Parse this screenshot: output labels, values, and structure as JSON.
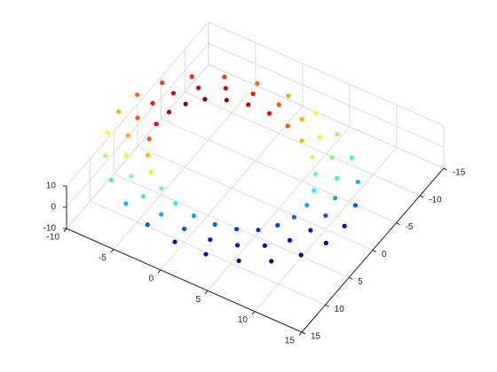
{
  "chart_data": {
    "type": "scatter3d",
    "colormap": "jet",
    "clim": [
      -6,
      6
    ],
    "grid": true,
    "xlim": [
      -10,
      15
    ],
    "xticks": [
      -10,
      -5,
      0,
      5,
      10,
      15
    ],
    "ylim": [
      -15,
      15
    ],
    "yticks": [
      -15,
      -10,
      -5,
      0,
      5,
      10,
      15
    ],
    "zlim": [
      -10,
      10
    ],
    "zticks": [
      -10,
      0,
      10
    ],
    "x": [
      8,
      7.7,
      6.9,
      5.7,
      4,
      2.1,
      0,
      -2.1,
      -4,
      -5.7,
      -6.9,
      -7.7,
      -8,
      -7.7,
      -6.9,
      -5.7,
      -4,
      -2.1,
      0,
      2.1,
      4,
      5.7,
      6.9,
      7.7,
      10,
      9.7,
      8.7,
      7.1,
      5,
      2.6,
      0,
      -2.6,
      -5,
      -7.1,
      -8.7,
      -9.7,
      -10,
      -9.7,
      -8.7,
      -7.1,
      -5,
      -2.6,
      0,
      2.6,
      5,
      7.1,
      8.7,
      9.7,
      12,
      11.6,
      10.4,
      8.5,
      6,
      3.1,
      0,
      -3.1,
      -6,
      -8.5,
      -10.4,
      -11.6,
      -12,
      -11.6,
      -10.4,
      -8.5,
      -6,
      -3.1,
      0,
      3.1,
      6,
      8.5,
      10.4,
      11.6
    ],
    "y": [
      0,
      2.1,
      4,
      5.7,
      6.9,
      7.7,
      8,
      7.7,
      6.9,
      5.7,
      4,
      2.1,
      0,
      -2.1,
      -4,
      -5.7,
      -6.9,
      -7.7,
      -8,
      -7.7,
      -6.9,
      -5.7,
      -4,
      -2.1,
      0,
      2.6,
      5,
      7.1,
      8.7,
      9.7,
      10,
      9.7,
      8.7,
      7.1,
      5,
      2.6,
      0,
      -2.6,
      -5,
      -7.1,
      -8.7,
      -9.7,
      -10,
      -9.7,
      -8.7,
      -7.1,
      -5,
      -2.6,
      0,
      3.1,
      6,
      8.5,
      10.4,
      11.6,
      12,
      11.6,
      10.4,
      8.5,
      6,
      3.1,
      0,
      -3.1,
      -6,
      -8.5,
      -10.4,
      -11.6,
      -12,
      -11.6,
      -10.4,
      -8.5,
      -6,
      -3.1
    ],
    "z": [
      -2.5,
      -3.3,
      -3.8,
      -4,
      -3.8,
      -3.3,
      -2.5,
      -1.5,
      -0.3,
      1,
      2.3,
      3.5,
      4.5,
      5.3,
      5.8,
      6,
      5.8,
      5.3,
      4.5,
      3.5,
      2.3,
      1,
      -0.3,
      -1.5,
      -3.5,
      -4.3,
      -4.8,
      -5,
      -4.8,
      -4.3,
      -3.5,
      -2.5,
      -1.3,
      0,
      1.3,
      2.5,
      3.5,
      4.3,
      4.8,
      5,
      4.8,
      4.3,
      3.5,
      2.5,
      1.3,
      0,
      -1.3,
      -2.5,
      -4.5,
      -5.3,
      -5.8,
      -6,
      -5.8,
      -5.3,
      -4.5,
      -3.5,
      -2.3,
      -1,
      0.3,
      1.5,
      2.5,
      3.3,
      3.8,
      4,
      3.8,
      3.3,
      2.5,
      1.5,
      0.3,
      -1,
      -2.3,
      -3.5
    ]
  }
}
